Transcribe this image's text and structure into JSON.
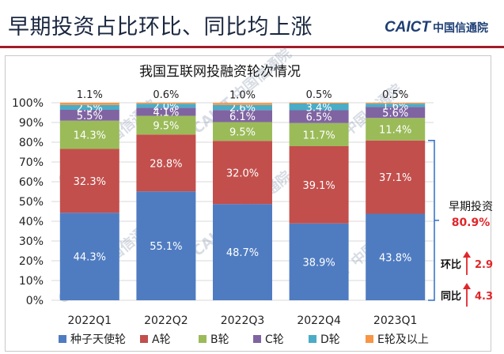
{
  "slide": {
    "title": "早期投资占比环比、同比均上涨",
    "brand_en": "CAICT",
    "brand_cn": "中国信通院"
  },
  "watermark": "CAICT 中国信通院",
  "chart_data": {
    "type": "bar",
    "stacked": true,
    "title": "我国互联网投融资轮次情况",
    "categories": [
      "2022Q1",
      "2022Q2",
      "2022Q3",
      "2022Q4",
      "2023Q1"
    ],
    "yaxis_ticks": [
      "0%",
      "10%",
      "20%",
      "30%",
      "40%",
      "50%",
      "60%",
      "70%",
      "80%",
      "90%",
      "100%"
    ],
    "ylim": [
      0,
      100
    ],
    "legend_position": "bottom",
    "series": [
      {
        "name": "种子天使轮",
        "color": "#4f7cc1",
        "values": [
          44.3,
          55.1,
          48.7,
          38.9,
          43.8
        ],
        "labels": [
          "44.3%",
          "55.1%",
          "48.7%",
          "38.9%",
          "43.8%"
        ]
      },
      {
        "name": "A轮",
        "color": "#c24f4c",
        "values": [
          32.3,
          28.8,
          32.0,
          39.1,
          37.1
        ],
        "labels": [
          "32.3%",
          "28.8%",
          "32.0%",
          "39.1%",
          "37.1%"
        ]
      },
      {
        "name": "B轮",
        "color": "#9bbb59",
        "values": [
          14.3,
          9.5,
          9.5,
          11.7,
          11.4
        ],
        "labels": [
          "14.3%",
          "9.5%",
          "9.5%",
          "11.7%",
          "11.4%"
        ]
      },
      {
        "name": "C轮",
        "color": "#8064a2",
        "values": [
          5.5,
          4.1,
          6.1,
          6.5,
          5.6
        ],
        "labels": [
          "5.5%",
          "4.1%",
          "6.1%",
          "6.5%",
          "5.6%"
        ]
      },
      {
        "name": "D轮",
        "color": "#4bacc6",
        "values": [
          2.5,
          2.0,
          2.6,
          3.4,
          1.6
        ],
        "labels": [
          "2.5%",
          "2.0%",
          "2.6%",
          "3.4%",
          "1.6%"
        ]
      },
      {
        "name": "E轮及以上",
        "color": "#f79646",
        "values": [
          1.1,
          0.6,
          1.0,
          0.5,
          0.5
        ],
        "labels": [
          "1.1%",
          "0.6%",
          "1.0%",
          "0.5%",
          "0.5%"
        ]
      }
    ],
    "annotations": {
      "early_label": "早期投资",
      "early_value": "80.9%",
      "qoq_label": "环比",
      "qoq_value": "2.9",
      "yoy_label": "同比",
      "yoy_value": "4.3"
    }
  }
}
